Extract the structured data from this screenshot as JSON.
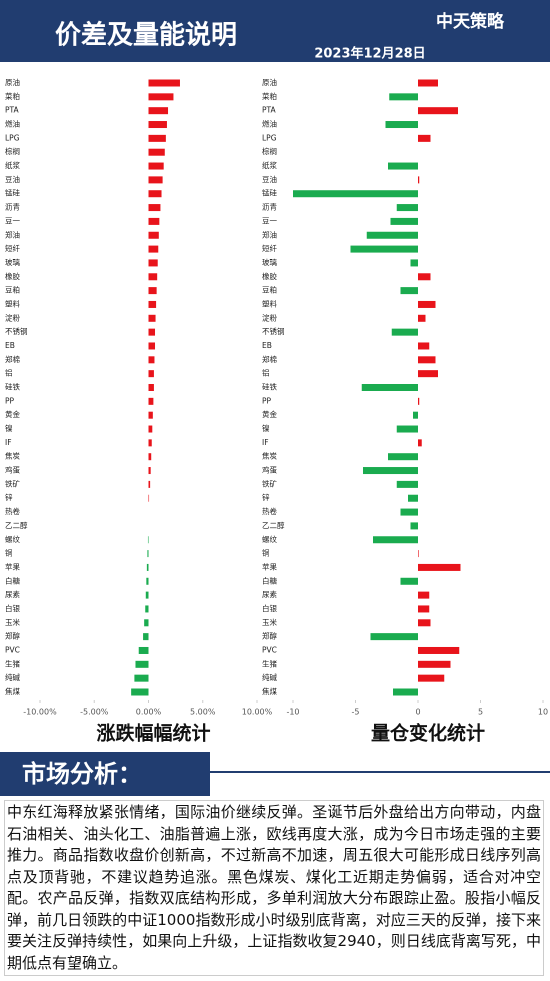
{
  "header": {
    "title": "价差及量能说明",
    "logo": "中天策略",
    "date": "2023年12月28日"
  },
  "chart_data": [
    {
      "type": "bar",
      "orientation": "horizontal",
      "title": "涨跌幅幅统计",
      "categories": [
        "原油",
        "菜粕",
        "PTA",
        "燃油",
        "LPG",
        "棕榈",
        "纸浆",
        "豆油",
        "锰硅",
        "沥青",
        "豆一",
        "郑油",
        "短纤",
        "玻璃",
        "橡胶",
        "豆粕",
        "塑料",
        "淀粉",
        "不锈钢",
        "EB",
        "郑棉",
        "铝",
        "硅铁",
        "PP",
        "黄金",
        "镍",
        "IF",
        "焦炭",
        "鸡蛋",
        "铁矿",
        "锌",
        "热卷",
        "乙二醇",
        "螺纹",
        "铜",
        "苹果",
        "白糖",
        "尿素",
        "白银",
        "玉米",
        "郑醇",
        "PVC",
        "生猪",
        "纯碱",
        "焦煤"
      ],
      "values": [
        2.9,
        2.3,
        1.8,
        1.7,
        1.6,
        1.5,
        1.4,
        1.3,
        1.2,
        1.1,
        1.0,
        0.95,
        0.9,
        0.85,
        0.8,
        0.75,
        0.7,
        0.65,
        0.6,
        0.6,
        0.55,
        0.5,
        0.5,
        0.45,
        0.4,
        0.35,
        0.3,
        0.25,
        0.2,
        0.15,
        0.05,
        0,
        0,
        -0.05,
        -0.1,
        -0.15,
        -0.2,
        -0.25,
        -0.3,
        -0.4,
        -0.5,
        -0.9,
        -1.2,
        -1.3,
        -1.6
      ],
      "positive_color": "#e8141b",
      "negative_color": "#1aab4f",
      "xlim": [
        -10,
        10
      ],
      "xticks": [
        {
          "value": -10,
          "label": "-10.00%"
        },
        {
          "value": -5,
          "label": "-5.00%"
        },
        {
          "value": 0,
          "label": "0.00%"
        },
        {
          "value": 5,
          "label": "5.00%"
        },
        {
          "value": 10,
          "label": "10.00%"
        }
      ]
    },
    {
      "type": "bar",
      "orientation": "horizontal",
      "title": "量仓变化统计",
      "categories": [
        "原油",
        "菜粕",
        "PTA",
        "燃油",
        "LPG",
        "棕榈",
        "纸浆",
        "豆油",
        "锰硅",
        "沥青",
        "豆一",
        "郑油",
        "短纤",
        "玻璃",
        "橡胶",
        "豆粕",
        "塑料",
        "淀粉",
        "不锈钢",
        "EB",
        "郑棉",
        "铝",
        "硅铁",
        "PP",
        "黄金",
        "镍",
        "IF",
        "焦炭",
        "鸡蛋",
        "铁矿",
        "锌",
        "热卷",
        "乙二醇",
        "螺纹",
        "铜",
        "苹果",
        "白糖",
        "尿素",
        "白银",
        "玉米",
        "郑醇",
        "PVC",
        "生猪",
        "纯碱",
        "焦煤"
      ],
      "values": [
        1.6,
        -2.3,
        3.2,
        -2.6,
        1.0,
        0,
        -2.4,
        0.1,
        -10,
        -1.7,
        -2.2,
        -4.1,
        -5.4,
        -0.6,
        1.0,
        -1.4,
        1.4,
        0.6,
        -2.1,
        0.9,
        1.4,
        1.6,
        -4.5,
        0.1,
        -0.4,
        -1.7,
        0.3,
        -2.4,
        -4.4,
        -1.7,
        -0.8,
        -1.4,
        -0.6,
        -3.6,
        0.05,
        3.4,
        -1.4,
        0.9,
        0.9,
        1.0,
        -3.8,
        3.3,
        2.6,
        2.1,
        -2.0
      ],
      "positive_color": "#e8141b",
      "negative_color": "#1aab4f",
      "xlim": [
        -10,
        10
      ],
      "xticks": [
        -10,
        -5,
        0,
        5,
        10
      ]
    }
  ],
  "analysis": {
    "title": "市场分析：",
    "text": "中东红海释放紧张情绪，国际油价继续反弹。圣诞节后外盘给出方向带动，内盘石油相关、油头化工、油脂普遍上涨，欧线再度大涨，成为今日市场走强的主要推力。商品指数收盘价创新高，不过新高不加速，周五很大可能形成日线序列高点及顶背驰，不建议趋势追涨。黑色煤炭、煤化工近期走势偏弱，适合对冲空配。农产品反弹，指数双底结构形成，多单利润放大分布跟踪止盈。股指小幅反弹，前几日领跌的中证1000指数形成小时级别底背离，对应三天的反弹，接下来要关注反弹持续性，如果向上升级，上证指数收复2940，则日线底背离写死，中期低点有望确立。"
  }
}
